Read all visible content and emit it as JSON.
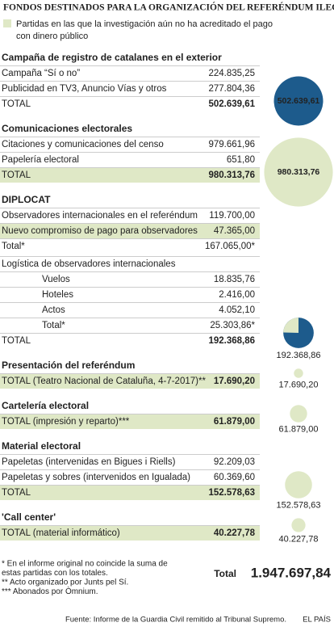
{
  "title": "FONDOS DESTINADOS PARA LA ORGANIZACIÓN DEL REFERÉNDUM ILEGAL",
  "legend": {
    "color": "#dfe8c6",
    "lines": [
      "Partidas en las que la investigación aún no ha acreditado el pago",
      "con dinero público"
    ]
  },
  "sections": [
    {
      "title": "Campaña de registro de catalanes en el exterior",
      "circle": "dark",
      "rows": [
        {
          "label": "Campaña “Sí o no”",
          "value": "224.835,25"
        },
        {
          "label": "Publicidad en TV3, Anuncio Vías y otros",
          "value": "277.804,36"
        },
        {
          "label": "TOTAL",
          "value": "502.639,61",
          "total": true
        }
      ]
    },
    {
      "title": "Comunicaciones electorales",
      "circle": "light",
      "rows": [
        {
          "label": "Citaciones y comunicaciones del censo",
          "value": "979.661,96"
        },
        {
          "label": "Papelería electoral",
          "value": "651,80"
        },
        {
          "label": "TOTAL",
          "value": "980.313,76",
          "total": true,
          "highlight": true
        }
      ]
    },
    {
      "title": "DIPLOCAT",
      "circle": "pie",
      "rows": [
        {
          "label": "Observadores internacionales en el referéndum",
          "value": "119.700,00"
        },
        {
          "label": "Nuevo compromiso de pago para observadores",
          "value": "47.365,00",
          "highlight": true
        },
        {
          "label": "Total*",
          "value": "167.065,00*"
        },
        {
          "label": "Logística de observadores internacionales",
          "subheader": true
        },
        {
          "label": "Vuelos",
          "value": "18.835,76",
          "indent": true
        },
        {
          "label": "Hoteles",
          "value": "2.416,00",
          "indent": true
        },
        {
          "label": "Actos",
          "value": "4.052,10",
          "indent": true
        },
        {
          "label": "Total*",
          "value": "25.303,86*",
          "indent": true
        },
        {
          "label": "TOTAL",
          "value": "192.368,86",
          "total": true
        }
      ]
    },
    {
      "title": "Presentación del referéndum",
      "circle": "small",
      "rows": [
        {
          "label": "TOTAL (Teatro Nacional de Cataluña, 4-7-2017)**",
          "value": "17.690,20",
          "total": true,
          "highlight": true
        }
      ]
    },
    {
      "title": "Cartelería electoral",
      "circle": "small",
      "rows": [
        {
          "label": "TOTAL (impresión y reparto)***",
          "value": "61.879,00",
          "total": true,
          "highlight": true
        }
      ]
    },
    {
      "title": "Material electoral",
      "circle": "small",
      "rows": [
        {
          "label": "Papeletas (intervenidas en Bigues i Riells)",
          "value": "92.209,03"
        },
        {
          "label": "Papeletas y sobres (intervenidos en Igualada)",
          "value": "60.369,60"
        },
        {
          "label": "TOTAL",
          "value": "152.578,63",
          "total": true,
          "highlight": true
        }
      ]
    },
    {
      "title": "'Call center'",
      "circle": "small",
      "rows": [
        {
          "label": "TOTAL (material informático)",
          "value": "40.227,78",
          "total": true,
          "highlight": true
        }
      ]
    }
  ],
  "footnotes": [
    "* En el informe original no coincide la suma de",
    "estas partidas con los totales.",
    "** Acto organizado por Junts pel Sí.",
    "*** Abonados por Òmnium."
  ],
  "grand_total": {
    "label": "Total",
    "value": "1.947.697,84"
  },
  "source": "Fuente: Informe de la Guardia Civil remitido al Tribunal Supremo.",
  "brand": "EL PAÍS"
}
